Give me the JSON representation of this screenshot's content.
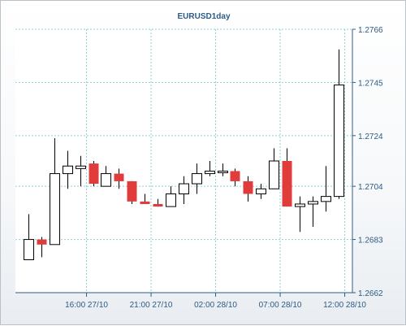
{
  "chart_data": {
    "type": "candlestick",
    "title": "EURUSD1day",
    "xlabel": "",
    "ylabel": "",
    "ylim": [
      1.2662,
      1.2766
    ],
    "y_ticks": [
      "1.2766",
      "1.2745",
      "1.2724",
      "1.2704",
      "1.2683",
      "1.2662"
    ],
    "x_ticks": [
      {
        "label": "16:00 27/10",
        "index": 4.5
      },
      {
        "label": "21:00 27/10",
        "index": 9.5
      },
      {
        "label": "02:00 28/10",
        "index": 14.5
      },
      {
        "label": "07:00 28/10",
        "index": 19.5
      },
      {
        "label": "12:00 28/10",
        "index": 24.5
      }
    ],
    "grid": true,
    "colors": {
      "up_fill": "#ffffff",
      "down_fill": "#e03c3c",
      "outline": "#000000",
      "grid": "#8fd0d6",
      "text": "#2c5b86"
    },
    "series": [
      {
        "open": 1.2675,
        "high": 1.2693,
        "low": 1.2675,
        "close": 1.2683
      },
      {
        "open": 1.2683,
        "high": 1.2684,
        "low": 1.2676,
        "close": 1.2681
      },
      {
        "open": 1.2681,
        "high": 1.2723,
        "low": 1.2681,
        "close": 1.2709
      },
      {
        "open": 1.2709,
        "high": 1.2718,
        "low": 1.2703,
        "close": 1.2712
      },
      {
        "open": 1.2711,
        "high": 1.2716,
        "low": 1.2704,
        "close": 1.2712
      },
      {
        "open": 1.2713,
        "high": 1.2714,
        "low": 1.2704,
        "close": 1.2705
      },
      {
        "open": 1.2704,
        "high": 1.2712,
        "low": 1.2704,
        "close": 1.2709
      },
      {
        "open": 1.2709,
        "high": 1.2711,
        "low": 1.2703,
        "close": 1.2706
      },
      {
        "open": 1.2706,
        "high": 1.2706,
        "low": 1.2697,
        "close": 1.2698
      },
      {
        "open": 1.2698,
        "high": 1.2701,
        "low": 1.2697,
        "close": 1.2697
      },
      {
        "open": 1.2697,
        "high": 1.2699,
        "low": 1.2696,
        "close": 1.2696
      },
      {
        "open": 1.2696,
        "high": 1.2704,
        "low": 1.2696,
        "close": 1.2701
      },
      {
        "open": 1.2701,
        "high": 1.2708,
        "low": 1.2697,
        "close": 1.2705
      },
      {
        "open": 1.2705,
        "high": 1.2713,
        "low": 1.2701,
        "close": 1.2709
      },
      {
        "open": 1.2709,
        "high": 1.2714,
        "low": 1.2708,
        "close": 1.271
      },
      {
        "open": 1.271,
        "high": 1.2713,
        "low": 1.2708,
        "close": 1.271
      },
      {
        "open": 1.271,
        "high": 1.2711,
        "low": 1.2704,
        "close": 1.2706
      },
      {
        "open": 1.2706,
        "high": 1.2708,
        "low": 1.2698,
        "close": 1.2701
      },
      {
        "open": 1.2701,
        "high": 1.2705,
        "low": 1.2699,
        "close": 1.2703
      },
      {
        "open": 1.2703,
        "high": 1.2719,
        "low": 1.2703,
        "close": 1.2714
      },
      {
        "open": 1.2714,
        "high": 1.2719,
        "low": 1.2696,
        "close": 1.2696
      },
      {
        "open": 1.2696,
        "high": 1.27,
        "low": 1.2686,
        "close": 1.2697
      },
      {
        "open": 1.2697,
        "high": 1.27,
        "low": 1.2688,
        "close": 1.2698
      },
      {
        "open": 1.2698,
        "high": 1.2712,
        "low": 1.2694,
        "close": 1.27
      },
      {
        "open": 1.27,
        "high": 1.2758,
        "low": 1.2699,
        "close": 1.2744
      }
    ]
  }
}
